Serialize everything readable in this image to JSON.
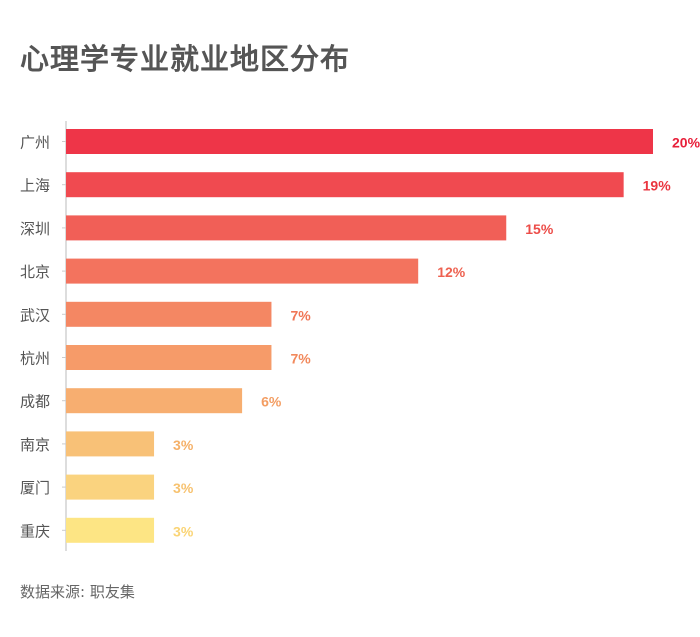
{
  "chart_data": {
    "type": "bar",
    "orientation": "horizontal",
    "title": "心理学专业就业地区分布",
    "categories": [
      "广州",
      "上海",
      "深圳",
      "北京",
      "武汉",
      "杭州",
      "成都",
      "南京",
      "厦门",
      "重庆"
    ],
    "values": [
      20,
      19,
      15,
      12,
      7,
      7,
      6,
      3,
      3,
      3
    ],
    "value_labels": [
      "20%",
      "19%",
      "15%",
      "12%",
      "7%",
      "7%",
      "6%",
      "3%",
      "3%",
      "3%"
    ],
    "unit": "%",
    "xlim": [
      0,
      20
    ],
    "grid": false,
    "colors": [
      "#ee3548",
      "#f04a50",
      "#f15f57",
      "#f3735e",
      "#f48763",
      "#f69b69",
      "#f7ae70",
      "#f8c177",
      "#fad37f",
      "#fde584"
    ],
    "label_colors": [
      "#e8203a",
      "#ea3640",
      "#ec4c48",
      "#ee6150",
      "#f07656",
      "#f2895c",
      "#f39d62",
      "#f5b068",
      "#f7c26f",
      "#fad475"
    ]
  },
  "source": "数据来源: 职友集"
}
